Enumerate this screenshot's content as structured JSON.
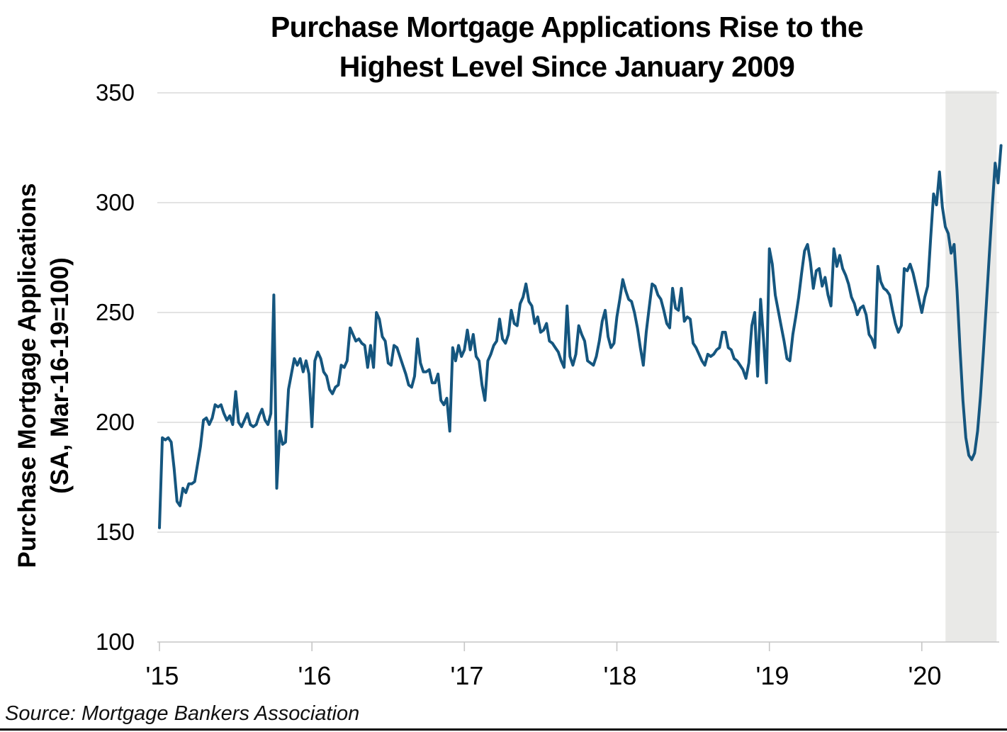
{
  "title": {
    "line1": "Purchase Mortgage Applications Rise to the",
    "line2": "Highest Level Since January 2009",
    "full": "Purchase Mortgage Applications Rise to the Highest Level Since January 2009"
  },
  "y_axis": {
    "label_line1": "Purchase Mortgage Applications",
    "label_line2": "(SA, Mar-16-19=100)",
    "tick_labels": [
      "350",
      "300",
      "250",
      "200",
      "150",
      "100"
    ],
    "tick_values": [
      350,
      300,
      250,
      200,
      150,
      100
    ]
  },
  "x_axis": {
    "tick_labels": [
      "'15",
      "'16",
      "'17",
      "'18",
      "'19",
      "'20"
    ]
  },
  "source": "Source: Mortgage Bankers Association",
  "colors": {
    "line": "#15567F",
    "gridline": "#DADADA",
    "axis": "#C6C6C6",
    "recession_band": "#E9E9E7",
    "text": "#000000"
  },
  "chart_data": {
    "type": "line",
    "title": "Purchase Mortgage Applications Rise to the Highest Level Since January 2009",
    "xlabel": "",
    "ylabel": "Purchase Mortgage Applications (SA, Mar-16-19=100)",
    "ylim": [
      100,
      350
    ],
    "x_range_years": [
      2015.0,
      2020.52
    ],
    "grid": "horizontal-only",
    "legend": "none",
    "x_tick_years": [
      2015,
      2016,
      2017,
      2018,
      2019,
      2020
    ],
    "recession_band": {
      "start_year": 2020.155,
      "end_year": 2020.49
    },
    "points_per_year": 52,
    "series": [
      {
        "name": "Purchase Mortgage Applications (SA, Mar-16-19=100)",
        "start_year": 2015.0,
        "frequency": "weekly",
        "weekly_values": [
          152,
          193,
          192,
          193,
          191,
          179,
          164,
          162,
          170,
          168,
          172,
          172,
          173,
          181,
          189,
          201,
          202,
          199,
          202,
          208,
          207,
          208,
          204,
          201,
          203,
          199,
          214,
          200,
          198,
          201,
          204,
          199,
          198,
          199,
          203,
          206,
          201,
          199,
          204,
          258,
          170,
          196,
          190,
          191,
          215,
          222,
          229,
          226,
          229,
          223,
          228,
          222,
          198,
          228,
          232,
          229,
          223,
          221,
          215,
          213,
          216,
          217,
          226,
          225,
          228,
          243,
          240,
          237,
          238,
          236,
          235,
          225,
          235,
          225,
          250,
          247,
          239,
          237,
          227,
          226,
          235,
          234,
          230,
          226,
          222,
          217,
          216,
          221,
          238,
          227,
          223,
          223,
          224,
          218,
          218,
          222,
          210,
          208,
          211,
          196,
          234,
          228,
          235,
          230,
          233,
          242,
          233,
          240,
          230,
          228,
          217,
          210,
          228,
          231,
          235,
          237,
          247,
          238,
          236,
          240,
          251,
          245,
          244,
          254,
          257,
          263,
          255,
          253,
          245,
          248,
          241,
          242,
          245,
          237,
          236,
          234,
          232,
          228,
          225,
          253,
          230,
          226,
          231,
          244,
          240,
          237,
          228,
          227,
          226,
          230,
          237,
          246,
          251,
          239,
          234,
          236,
          248,
          256,
          265,
          260,
          256,
          255,
          250,
          243,
          234,
          226,
          241,
          252,
          263,
          262,
          258,
          256,
          251,
          245,
          243,
          261,
          252,
          251,
          261,
          246,
          248,
          247,
          236,
          234,
          231,
          228,
          226,
          231,
          230,
          231,
          233,
          234,
          241,
          241,
          234,
          233,
          229,
          228,
          226,
          224,
          220,
          227,
          244,
          250,
          221,
          256,
          238,
          218,
          279,
          272,
          258,
          251,
          244,
          237,
          229,
          228,
          240,
          248,
          257,
          268,
          278,
          281,
          273,
          261,
          269,
          270,
          262,
          266,
          258,
          253,
          279,
          271,
          276,
          270,
          267,
          263,
          257,
          254,
          249,
          252,
          253,
          249,
          240,
          238,
          234,
          271,
          264,
          261,
          260,
          258,
          251,
          245,
          241,
          244,
          270,
          269,
          272,
          268,
          262,
          256,
          250,
          257,
          262,
          284,
          304,
          299,
          314,
          298,
          289,
          286,
          277,
          281,
          260,
          234,
          210,
          193,
          185,
          183,
          186,
          196,
          212,
          232,
          254,
          276,
          298,
          318,
          309,
          326
        ]
      }
    ]
  }
}
